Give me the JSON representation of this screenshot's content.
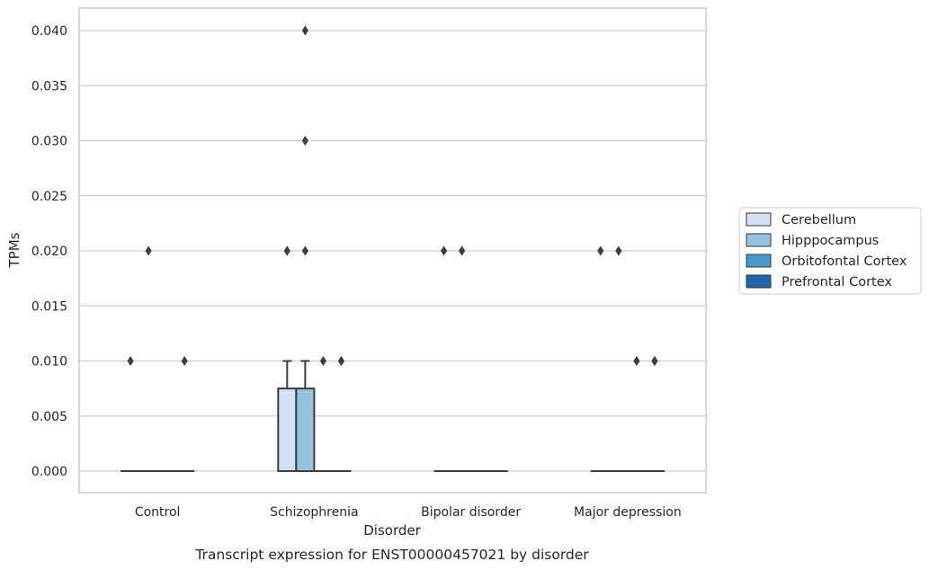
{
  "chart_data": {
    "type": "box",
    "caption": "Transcript expression for ENST00000457021 by disorder",
    "xlabel": "Disorder",
    "ylabel": "TPMs",
    "ylim": [
      -0.002,
      0.042
    ],
    "yticks": [
      "0.000",
      "0.005",
      "0.010",
      "0.015",
      "0.020",
      "0.025",
      "0.030",
      "0.035",
      "0.040"
    ],
    "grid": "horizontal",
    "legend_position": "right",
    "categories": [
      "Control",
      "Schizophrenia",
      "Bipolar disorder",
      "Major depression"
    ],
    "series": [
      {
        "name": "Cerebellum",
        "color": "#d0e1f2",
        "boxes": [
          {
            "min": 0,
            "q1": 0,
            "median": 0,
            "q3": 0,
            "max": 0,
            "outliers": [
              0.01
            ]
          },
          {
            "min": 0,
            "q1": 0,
            "median": 0,
            "q3": 0.0075,
            "max": 0.01,
            "outliers": [
              0.02,
              0.02
            ]
          },
          {
            "min": 0,
            "q1": 0,
            "median": 0,
            "q3": 0,
            "max": 0,
            "outliers": [
              0.02
            ]
          },
          {
            "min": 0,
            "q1": 0,
            "median": 0,
            "q3": 0,
            "max": 0,
            "outliers": [
              0.02
            ]
          }
        ]
      },
      {
        "name": "Hipppocampus",
        "color": "#94c4df",
        "boxes": [
          {
            "min": 0,
            "q1": 0,
            "median": 0,
            "q3": 0,
            "max": 0,
            "outliers": [
              0.02
            ]
          },
          {
            "min": 0,
            "q1": 0,
            "median": 0,
            "q3": 0.0075,
            "max": 0.01,
            "outliers": [
              0.04,
              0.03,
              0.02
            ]
          },
          {
            "min": 0,
            "q1": 0,
            "median": 0,
            "q3": 0,
            "max": 0,
            "outliers": [
              0.02,
              0.02
            ]
          },
          {
            "min": 0,
            "q1": 0,
            "median": 0,
            "q3": 0,
            "max": 0,
            "outliers": [
              0.02
            ]
          }
        ]
      },
      {
        "name": "Orbitofontal Cortex",
        "color": "#4b98c9",
        "boxes": [
          {
            "min": 0,
            "q1": 0,
            "median": 0,
            "q3": 0,
            "max": 0,
            "outliers": []
          },
          {
            "min": 0,
            "q1": 0,
            "median": 0,
            "q3": 0,
            "max": 0,
            "outliers": [
              0.01
            ]
          },
          {
            "min": 0,
            "q1": 0,
            "median": 0,
            "q3": 0,
            "max": 0,
            "outliers": []
          },
          {
            "min": 0,
            "q1": 0,
            "median": 0,
            "q3": 0,
            "max": 0,
            "outliers": [
              0.01
            ]
          }
        ]
      },
      {
        "name": "Prefrontal Cortex",
        "color": "#2264a8",
        "boxes": [
          {
            "min": 0,
            "q1": 0,
            "median": 0,
            "q3": 0,
            "max": 0,
            "outliers": [
              0.01
            ]
          },
          {
            "min": 0,
            "q1": 0,
            "median": 0,
            "q3": 0,
            "max": 0,
            "outliers": [
              0.01,
              0.01
            ]
          },
          {
            "min": 0,
            "q1": 0,
            "median": 0,
            "q3": 0,
            "max": 0,
            "outliers": []
          },
          {
            "min": 0,
            "q1": 0,
            "median": 0,
            "q3": 0,
            "max": 0,
            "outliers": [
              0.01,
              0.01
            ]
          }
        ]
      }
    ]
  }
}
